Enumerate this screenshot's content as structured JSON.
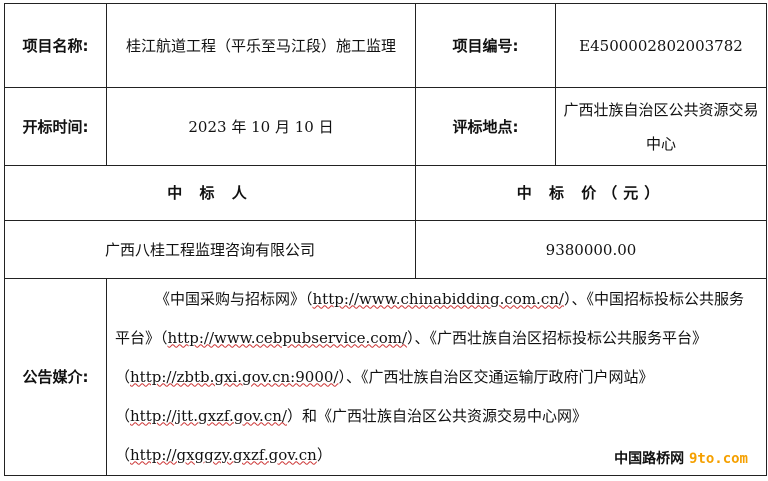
{
  "project_name_label": "项目名称:",
  "project_name": "桂江航道工程（平乐至马江段）施工监理",
  "project_no_label": "项目编号:",
  "project_no": "E4500002802003782",
  "open_time_label": "开标时间:",
  "open_time": "2023 年 10 月 10 日",
  "eval_place_label": "评标地点:",
  "eval_place": "广西壮族自治区公共资源交易中心",
  "winner_header": "中 标 人",
  "price_header": "中 标 价（元）",
  "winner": "广西八桂工程监理咨询有限公司",
  "price": "9380000.00",
  "media_label": "公告媒介:",
  "media": {
    "p1": "《中国采购与招标网》（",
    "u1": "http://www.chinabidding.com.cn/",
    "p2": "）、《中国招标投标公共服务平台》（",
    "u2": "http://www.cebpubservice.com/",
    "p3": "）、《广西壮族自治区招标投标公共服务平台》（",
    "u3": "http://zbtb.gxi.gov.cn:9000/",
    "p4": "）、《广西壮族自治区交通运输厅政府门户网站》（",
    "u4": "http://jtt.gxzf.gov.cn/",
    "p5": "）和《广西壮族自治区公共资源交易中心网》（",
    "u5": "http://gxggzy.gxzf.gov.cn",
    "p6": "）"
  },
  "watermark": {
    "cn": "中国路桥网",
    "domain": "9to.com"
  }
}
